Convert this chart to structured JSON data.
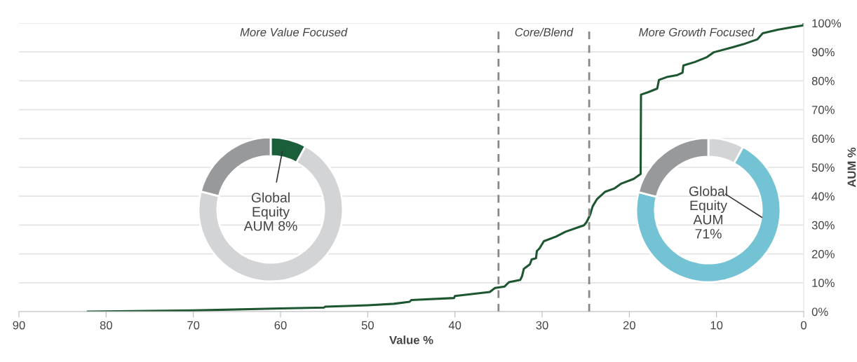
{
  "chart_data": [
    {
      "type": "line",
      "xlabel": "Value %",
      "ylabel": "AUM %",
      "xlim": [
        90,
        0
      ],
      "xticks": [
        90,
        80,
        70,
        60,
        50,
        40,
        30,
        20,
        10,
        0
      ],
      "ylim": [
        0,
        100
      ],
      "yticks": [
        {
          "value": 0,
          "label": "0%"
        },
        {
          "value": 10,
          "label": "10%"
        },
        {
          "value": 20,
          "label": "20%"
        },
        {
          "value": 30,
          "label": "30%"
        },
        {
          "value": 40,
          "label": "40%"
        },
        {
          "value": 50,
          "label": "50%"
        },
        {
          "value": 60,
          "label": "60%"
        },
        {
          "value": 70,
          "label": "70%"
        },
        {
          "value": 80,
          "label": "80%"
        },
        {
          "value": 90,
          "label": "90%"
        },
        {
          "value": 100,
          "label": "100%"
        }
      ],
      "grid": "y",
      "marker": "none",
      "line_style": "solid",
      "ref_lines": [
        {
          "axis": "x",
          "value": 35,
          "color": "#888888",
          "line_style": "dashed"
        },
        {
          "axis": "x",
          "value": 24.6,
          "color": "#888888",
          "line_style": "dashed"
        }
      ],
      "annotations": [
        "More Value Focused",
        "Core/Blend",
        "More Growth Focused"
      ],
      "series": [
        {
          "color": "#1e5631",
          "x": [
            82.1,
            70,
            60,
            55,
            54.9,
            50,
            47,
            45.2,
            45,
            40.1,
            40,
            36,
            35.4,
            34.3,
            33.8,
            32.5,
            32.3,
            32.1,
            31.4,
            31.2,
            30.7,
            30.6,
            30.3,
            29.8,
            28.4,
            27.3,
            25.2,
            24.9,
            24.5,
            24.2,
            23.7,
            22.8,
            21.7,
            20.9,
            19.5,
            18.7,
            18.66,
            17.8,
            16.8,
            16.6,
            15.6,
            14.5,
            13.9,
            13.8,
            12.5,
            11.1,
            10.3,
            8.3,
            6.9,
            5.3,
            4.7,
            3.0,
            1.3,
            0.05,
            0
          ],
          "values": [
            0,
            0.4,
            1.1,
            1.4,
            1.7,
            2.2,
            2.7,
            3.4,
            4.0,
            4.7,
            5.4,
            6.8,
            8.2,
            8.7,
            10.2,
            11.0,
            12.3,
            14.8,
            16.4,
            18.1,
            18.5,
            21.0,
            21.9,
            24.4,
            26.0,
            27.7,
            29.9,
            31.0,
            33.5,
            36.5,
            39.0,
            41.5,
            42.7,
            44.4,
            46.0,
            47.7,
            75.2,
            76.1,
            77.3,
            80.3,
            81.4,
            82.0,
            82.8,
            85.3,
            86.5,
            88.2,
            89.9,
            91.5,
            92.7,
            94.4,
            96.5,
            97.7,
            98.6,
            99.2,
            99.8
          ]
        }
      ]
    },
    {
      "type": "donut",
      "categories": [
        null,
        null,
        null
      ],
      "values": [
        8,
        71,
        21
      ],
      "colors": [
        "#1b5e3a",
        "#d3d4d6",
        "#98999b"
      ],
      "annotations": [
        "Global\nEquity\nAUM 8%"
      ]
    },
    {
      "type": "donut",
      "categories": [
        null,
        null,
        null
      ],
      "values": [
        8,
        71,
        21
      ],
      "colors": [
        "#d3d4d6",
        "#74c3d5",
        "#98999b"
      ],
      "annotations": [
        "Global\nEquity\nAUM\n71%"
      ]
    }
  ]
}
